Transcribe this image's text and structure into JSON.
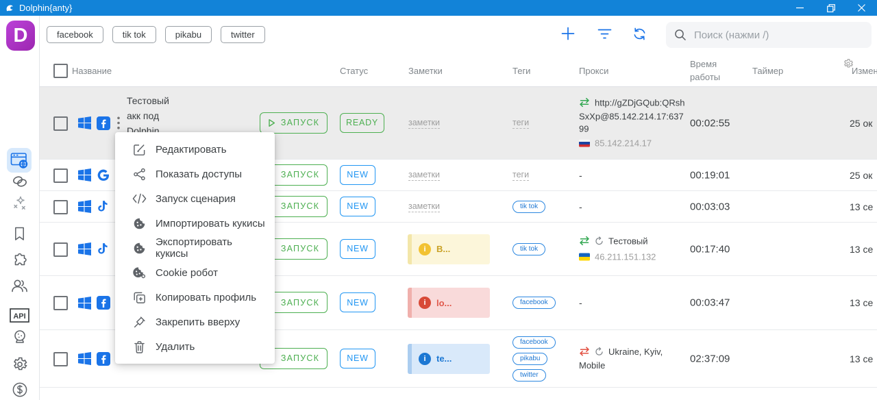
{
  "titlebar": {
    "title": "Dolphin{anty}"
  },
  "toolbar": {
    "tag_filters": [
      "facebook",
      "tik tok",
      "pikabu",
      "twitter"
    ],
    "search_placeholder": "Поиск (нажми /)"
  },
  "table": {
    "headers": {
      "name": "Название",
      "status": "Статус",
      "notes": "Заметки",
      "tags": "Теги",
      "proxy": "Прокси",
      "worktime": "Время работы",
      "timer": "Таймер",
      "changed": "Измен"
    },
    "run_label": "ЗАПУСК",
    "notes_placeholder": "заметки",
    "tags_placeholder": "теги",
    "empty_value": "-",
    "rows": [
      {
        "os": "windows",
        "app": "facebook",
        "kebab": true,
        "highlighted": true,
        "name": "Тестовый акк под Dolphin Cl...",
        "status": "READY",
        "status_style": "ready",
        "notes": "placeholder",
        "tags": "placeholder",
        "proxy": {
          "kind": "url",
          "arrow": "green",
          "url": "http://gZDjGQub:QRshSxXp@85.142.214.17:63799",
          "flag": "ru",
          "ip": "85.142.214.17"
        },
        "worktime": "00:02:55",
        "timer": "",
        "changed": "25 ок"
      },
      {
        "os": "windows",
        "app": "google",
        "status": "NEW",
        "status_style": "new",
        "notes": "placeholder",
        "tags": "placeholder",
        "proxy": {
          "kind": "none"
        },
        "worktime": "00:19:01",
        "timer": "",
        "changed": "25 ок"
      },
      {
        "os": "windows",
        "app": "tiktok",
        "status": "NEW",
        "status_style": "new",
        "notes": "placeholder",
        "tags": [
          "tik tok"
        ],
        "proxy": {
          "kind": "none"
        },
        "worktime": "00:03:03",
        "timer": "",
        "changed": "13 се"
      },
      {
        "os": "windows",
        "app": "tiktok",
        "status": "NEW",
        "status_style": "new",
        "note": {
          "color": "yellow",
          "text": "В..."
        },
        "tags": [
          "tik tok"
        ],
        "proxy": {
          "kind": "named",
          "arrow": "green",
          "retry": true,
          "name": "Тестовый",
          "flag": "ua",
          "ip": "46.211.151.132"
        },
        "worktime": "00:17:40",
        "timer": "",
        "changed": "13 се"
      },
      {
        "os": "windows",
        "app": "facebook",
        "status": "NEW",
        "status_style": "new",
        "note": {
          "color": "red",
          "text": "lo..."
        },
        "tags": [
          "facebook"
        ],
        "proxy": {
          "kind": "none"
        },
        "worktime": "00:03:47",
        "timer": "",
        "changed": "13 се"
      },
      {
        "os": "windows",
        "app": "facebook",
        "status": "NEW",
        "status_style": "new",
        "note": {
          "color": "blue",
          "text": "te..."
        },
        "tags": [
          "facebook",
          "pikabu",
          "twitter"
        ],
        "proxy": {
          "kind": "named",
          "arrow": "red",
          "retry": true,
          "name": "Ukraine, Kyiv, Mobile"
        },
        "worktime": "02:37:09",
        "timer": "",
        "changed": "13 се"
      }
    ]
  },
  "context_menu": {
    "items": [
      {
        "icon": "edit-icon",
        "label": "Редактировать"
      },
      {
        "icon": "share-icon",
        "label": "Показать доступы"
      },
      {
        "icon": "code-icon",
        "label": "Запуск сценария"
      },
      {
        "icon": "cookie-icon",
        "label": "Импортировать кукисы"
      },
      {
        "icon": "cookie-icon",
        "label": "Экспортировать кукисы"
      },
      {
        "icon": "cookie-gear-icon",
        "label": "Cookie робот"
      },
      {
        "icon": "copy-plus-icon",
        "label": "Копировать профиль"
      },
      {
        "icon": "pin-icon",
        "label": "Закрепить вверху"
      },
      {
        "icon": "trash-icon",
        "label": "Удалить"
      }
    ]
  },
  "sidebar": {
    "logo_letter": "D",
    "items": [
      {
        "icon": "browser-profiles-icon",
        "name": "profiles",
        "active": true
      },
      {
        "icon": "proxy-link-icon",
        "name": "proxy"
      },
      {
        "icon": "automation-icon",
        "name": "automation"
      },
      {
        "icon": "bookmarks-icon",
        "name": "bookmarks"
      },
      {
        "icon": "extensions-icon",
        "name": "extensions"
      },
      {
        "icon": "team-icon",
        "name": "team"
      },
      {
        "icon": "api-icon",
        "name": "api",
        "label": "API"
      },
      {
        "icon": "support-icon",
        "name": "support"
      },
      {
        "icon": "settings-icon",
        "name": "settings"
      },
      {
        "icon": "subscription-icon",
        "name": "subscription"
      }
    ]
  },
  "colors": {
    "titlebar": "#1283d8",
    "accent_blue": "#1a73e8",
    "green": "#4caf50",
    "badge_blue": "#2196f3",
    "logo_purple": "#a233c9",
    "selected_row": "#ececec"
  }
}
